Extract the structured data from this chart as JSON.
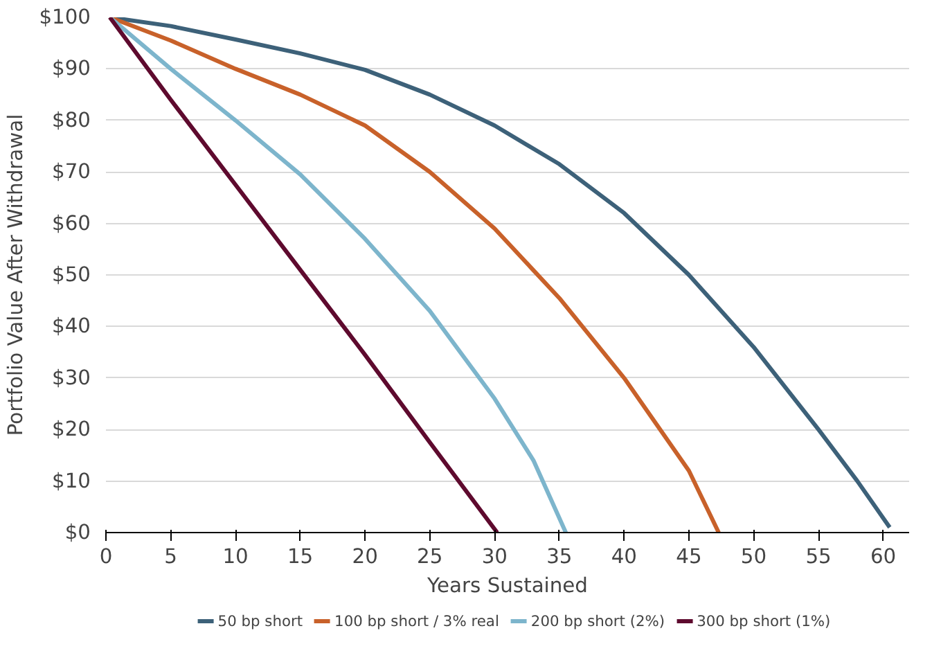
{
  "chart_data": {
    "type": "line",
    "xlabel": "Years Sustained",
    "ylabel": "Portfolio Value After Withdrawal",
    "xlim": [
      0,
      62
    ],
    "ylim": [
      0,
      100
    ],
    "xticks": [
      0,
      5,
      10,
      15,
      20,
      25,
      30,
      35,
      40,
      45,
      50,
      55,
      60
    ],
    "yticks": [
      {
        "value": 0,
        "label": "$0"
      },
      {
        "value": 10,
        "label": "$10"
      },
      {
        "value": 20,
        "label": "$20"
      },
      {
        "value": 30,
        "label": "$30"
      },
      {
        "value": 40,
        "label": "$40"
      },
      {
        "value": 50,
        "label": "$50"
      },
      {
        "value": 60,
        "label": "$60"
      },
      {
        "value": 70,
        "label": "$70"
      },
      {
        "value": 80,
        "label": "$80"
      },
      {
        "value": 90,
        "label": "$90"
      },
      {
        "value": 100,
        "label": "$100"
      }
    ],
    "grid": "y",
    "legend": "bottom",
    "line_style": "solid",
    "series": [
      {
        "name": "50 bp short",
        "color": "#3d6179",
        "x": [
          0.3,
          5,
          10,
          15,
          20,
          25,
          30,
          35,
          40,
          45,
          50,
          55,
          58,
          60.5
        ],
        "values": [
          100,
          98.3,
          95.7,
          93,
          89.8,
          85,
          79,
          71.5,
          62,
          50,
          36,
          20,
          10,
          1
        ]
      },
      {
        "name": "100 bp short / 3% real",
        "color": "#c8612a",
        "x": [
          0.3,
          5,
          10,
          15,
          20,
          25,
          30,
          35,
          40,
          45,
          47.3
        ],
        "values": [
          100,
          95.5,
          90,
          85,
          79,
          70,
          59,
          45.5,
          30,
          12,
          0
        ]
      },
      {
        "name": "200 bp short (2%)",
        "color": "#7db5cc",
        "x": [
          0.3,
          5,
          10,
          15,
          20,
          25,
          30,
          33,
          35.5
        ],
        "values": [
          100,
          90,
          80,
          69.5,
          57,
          43,
          26,
          14,
          0
        ]
      },
      {
        "name": "300 bp short (1%)",
        "color": "#5e0a2e",
        "x": [
          0.3,
          5,
          10,
          15,
          20,
          25,
          30.2
        ],
        "values": [
          100,
          84,
          67.5,
          51,
          34.5,
          17.5,
          0
        ]
      }
    ]
  }
}
